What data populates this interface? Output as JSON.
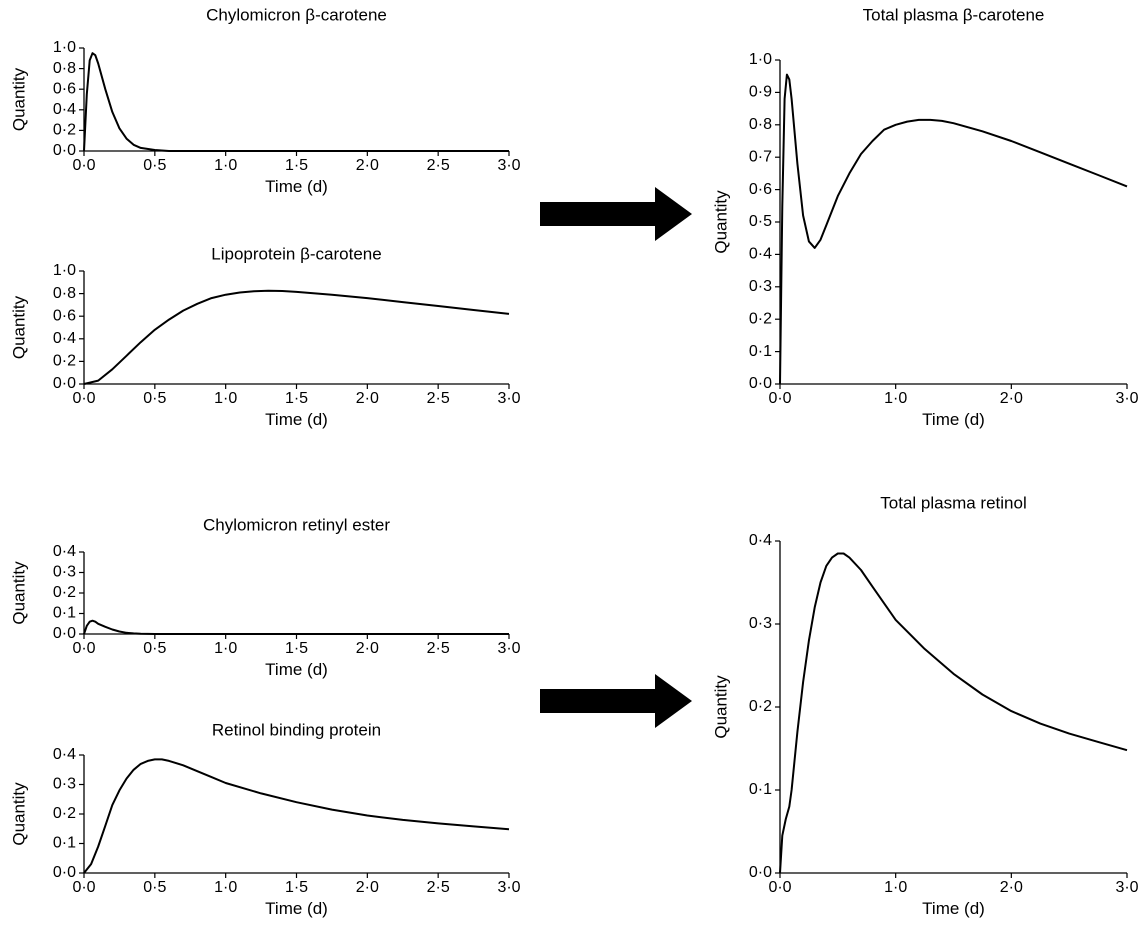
{
  "chart_data": [
    {
      "type": "line",
      "title": "Chylomicron β-carotene",
      "xlabel": "Time (d)",
      "ylabel": "Quantity",
      "xlim": [
        0,
        3
      ],
      "ylim": [
        0,
        1
      ],
      "xticks": [
        "0·0",
        "0·5",
        "1·0",
        "1·5",
        "2·0",
        "2·5",
        "3·0"
      ],
      "yticks": [
        "0·0",
        "0·2",
        "0·4",
        "0·6",
        "0·8",
        "1·0"
      ],
      "x": [
        0,
        0.02,
        0.04,
        0.06,
        0.08,
        0.1,
        0.15,
        0.2,
        0.25,
        0.3,
        0.35,
        0.4,
        0.5,
        0.6,
        0.7,
        3.0
      ],
      "y": [
        0,
        0.55,
        0.88,
        0.95,
        0.93,
        0.85,
        0.6,
        0.38,
        0.22,
        0.12,
        0.06,
        0.03,
        0.01,
        0.0,
        0.0,
        0.0
      ]
    },
    {
      "type": "line",
      "title": "Lipoprotein β-carotene",
      "xlabel": "Time (d)",
      "ylabel": "Quantity",
      "xlim": [
        0,
        3
      ],
      "ylim": [
        0,
        1
      ],
      "xticks": [
        "0·0",
        "0·5",
        "1·0",
        "1·5",
        "2·0",
        "2·5",
        "3·0"
      ],
      "yticks": [
        "0·0",
        "0·2",
        "0·4",
        "0·6",
        "0·8",
        "1·0"
      ],
      "x": [
        0,
        0.1,
        0.2,
        0.3,
        0.4,
        0.5,
        0.6,
        0.7,
        0.8,
        0.9,
        1.0,
        1.1,
        1.2,
        1.3,
        1.4,
        1.5,
        1.75,
        2.0,
        2.25,
        2.5,
        2.75,
        3.0
      ],
      "y": [
        0,
        0.03,
        0.13,
        0.25,
        0.37,
        0.48,
        0.57,
        0.65,
        0.71,
        0.76,
        0.79,
        0.81,
        0.82,
        0.825,
        0.823,
        0.815,
        0.79,
        0.76,
        0.725,
        0.69,
        0.655,
        0.62
      ]
    },
    {
      "type": "line",
      "title": "Total plasma β-carotene",
      "xlabel": "Time (d)",
      "ylabel": "Quantity",
      "xlim": [
        0,
        3
      ],
      "ylim": [
        0,
        1
      ],
      "xticks": [
        "0·0",
        "1·0",
        "2·0",
        "3·0"
      ],
      "yticks": [
        "0·0",
        "0·1",
        "0·2",
        "0·3",
        "0·4",
        "0·5",
        "0·6",
        "0·7",
        "0·8",
        "0·9",
        "1·0"
      ],
      "x": [
        0,
        0.02,
        0.04,
        0.06,
        0.08,
        0.1,
        0.15,
        0.2,
        0.25,
        0.3,
        0.35,
        0.4,
        0.5,
        0.6,
        0.7,
        0.8,
        0.9,
        1.0,
        1.1,
        1.2,
        1.3,
        1.4,
        1.5,
        1.75,
        2.0,
        2.25,
        2.5,
        2.75,
        3.0
      ],
      "y": [
        0,
        0.55,
        0.88,
        0.955,
        0.94,
        0.88,
        0.68,
        0.52,
        0.44,
        0.42,
        0.445,
        0.49,
        0.58,
        0.65,
        0.71,
        0.75,
        0.785,
        0.8,
        0.81,
        0.815,
        0.815,
        0.812,
        0.805,
        0.78,
        0.75,
        0.715,
        0.68,
        0.645,
        0.61
      ]
    },
    {
      "type": "line",
      "title": "Chylomicron retinyl ester",
      "xlabel": "Time (d)",
      "ylabel": "Quantity",
      "xlim": [
        0,
        3
      ],
      "ylim": [
        0,
        0.4
      ],
      "xticks": [
        "0·0",
        "0·5",
        "1·0",
        "1·5",
        "2·0",
        "2·5",
        "3·0"
      ],
      "yticks": [
        "0·0",
        "0·1",
        "0·2",
        "0·3",
        "0·4"
      ],
      "x": [
        0,
        0.02,
        0.04,
        0.06,
        0.08,
        0.1,
        0.15,
        0.2,
        0.25,
        0.3,
        0.35,
        0.4,
        0.5,
        3.0
      ],
      "y": [
        0,
        0.04,
        0.06,
        0.065,
        0.06,
        0.05,
        0.035,
        0.022,
        0.012,
        0.006,
        0.003,
        0.001,
        0.0,
        0.0
      ]
    },
    {
      "type": "line",
      "title": "Retinol binding protein",
      "xlabel": "Time (d)",
      "ylabel": "Quantity",
      "xlim": [
        0,
        3
      ],
      "ylim": [
        0,
        0.4
      ],
      "xticks": [
        "0·0",
        "0·5",
        "1·0",
        "1·5",
        "2·0",
        "2·5",
        "3·0"
      ],
      "yticks": [
        "0·0",
        "0·1",
        "0·2",
        "0·3",
        "0·4"
      ],
      "x": [
        0,
        0.05,
        0.1,
        0.15,
        0.2,
        0.25,
        0.3,
        0.35,
        0.4,
        0.45,
        0.5,
        0.55,
        0.6,
        0.7,
        0.8,
        0.9,
        1.0,
        1.25,
        1.5,
        1.75,
        2.0,
        2.25,
        2.5,
        2.75,
        3.0
      ],
      "y": [
        0,
        0.03,
        0.09,
        0.16,
        0.23,
        0.28,
        0.32,
        0.35,
        0.37,
        0.38,
        0.385,
        0.385,
        0.38,
        0.365,
        0.345,
        0.325,
        0.305,
        0.27,
        0.24,
        0.215,
        0.195,
        0.18,
        0.168,
        0.158,
        0.148
      ]
    },
    {
      "type": "line",
      "title": "Total plasma retinol",
      "xlabel": "Time (d)",
      "ylabel": "Quantity",
      "xlim": [
        0,
        3
      ],
      "ylim": [
        0,
        0.4
      ],
      "xticks": [
        "0·0",
        "1·0",
        "2·0",
        "3·0"
      ],
      "yticks": [
        "0·0",
        "0·1",
        "0·2",
        "0·3",
        "0·4"
      ],
      "x": [
        0,
        0.02,
        0.05,
        0.08,
        0.1,
        0.15,
        0.2,
        0.25,
        0.3,
        0.35,
        0.4,
        0.45,
        0.5,
        0.55,
        0.6,
        0.7,
        0.8,
        0.9,
        1.0,
        1.25,
        1.5,
        1.75,
        2.0,
        2.25,
        2.5,
        2.75,
        3.0
      ],
      "y": [
        0,
        0.045,
        0.065,
        0.08,
        0.1,
        0.17,
        0.23,
        0.28,
        0.32,
        0.35,
        0.37,
        0.38,
        0.385,
        0.385,
        0.38,
        0.365,
        0.345,
        0.325,
        0.305,
        0.27,
        0.24,
        0.215,
        0.195,
        0.18,
        0.168,
        0.158,
        0.148
      ]
    }
  ]
}
